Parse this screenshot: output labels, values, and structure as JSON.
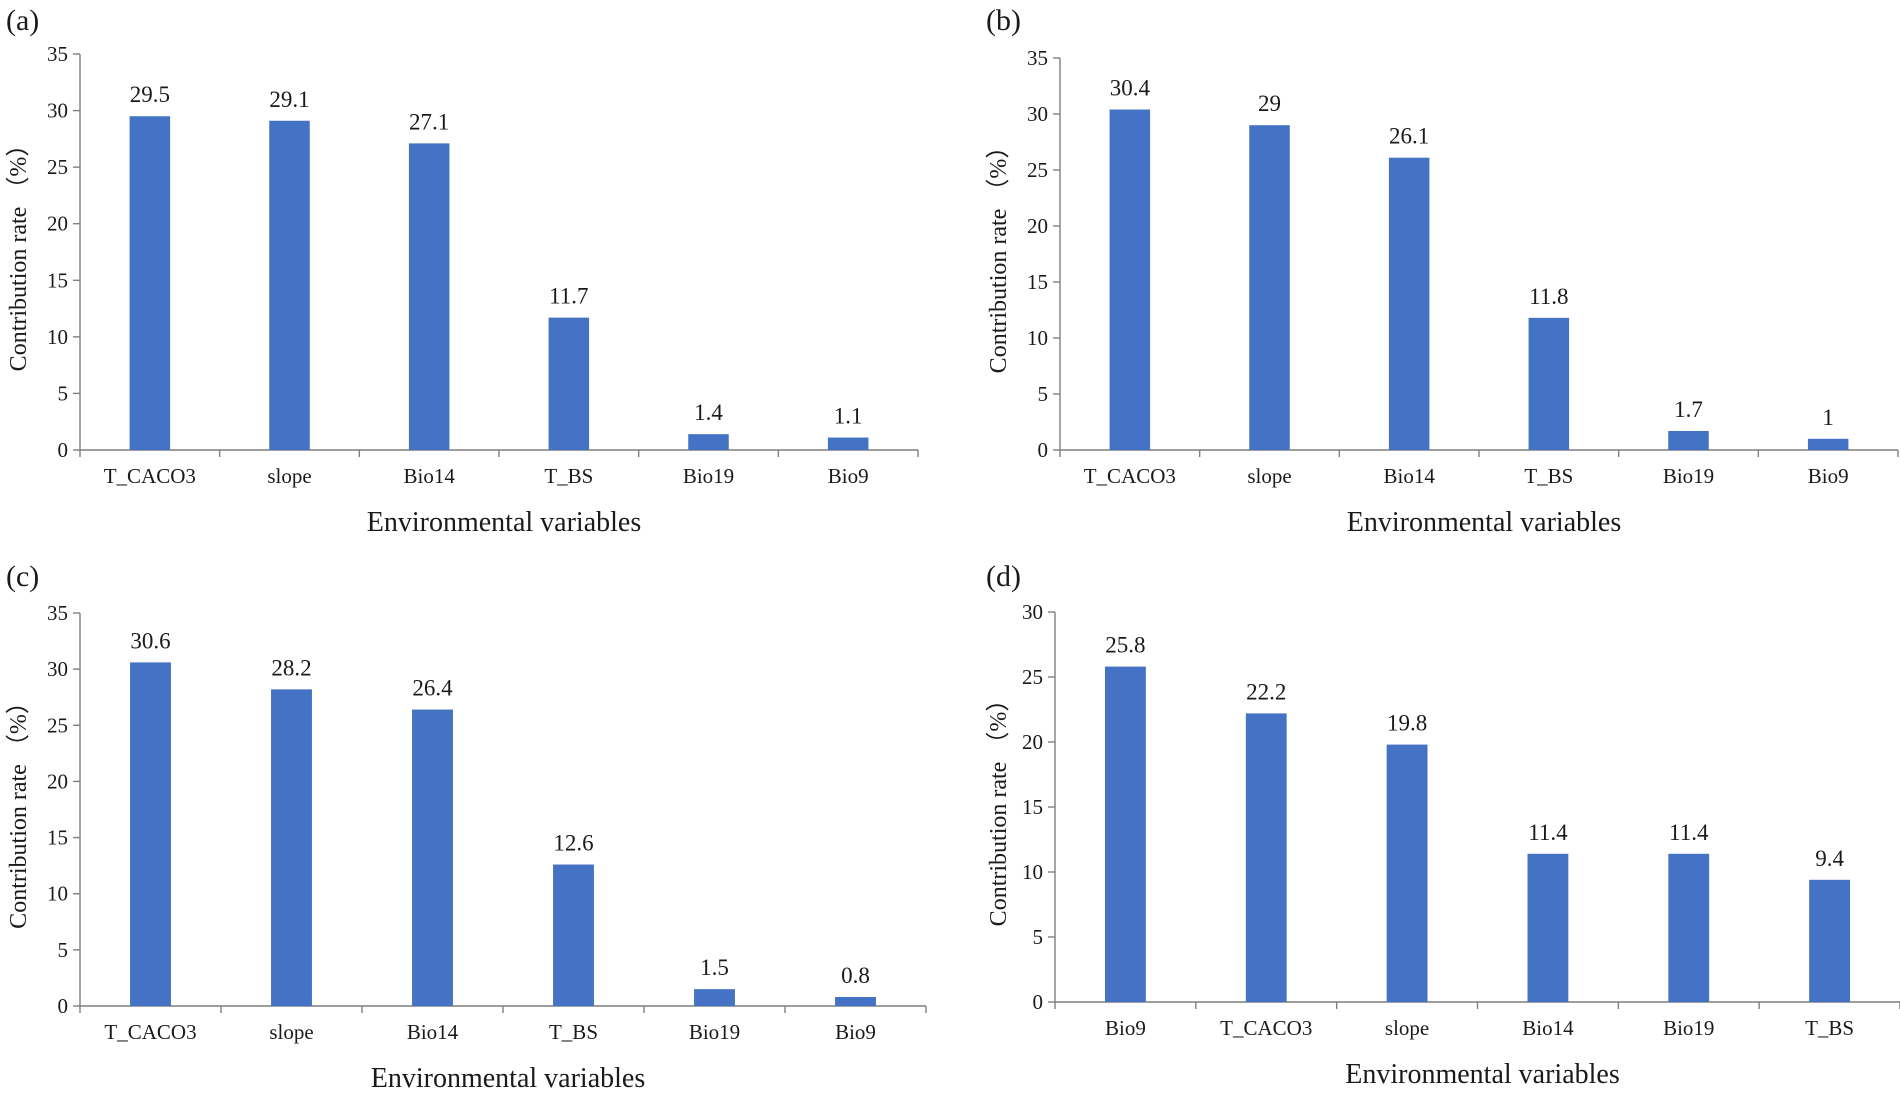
{
  "chart_data": [
    {
      "type": "bar",
      "panel_label": "(a)",
      "categories": [
        "T_CACO3",
        "slope",
        "Bio14",
        "T_BS",
        "Bio19",
        "Bio9"
      ],
      "values": [
        29.5,
        29.1,
        27.1,
        11.7,
        1.4,
        1.1
      ],
      "value_labels": [
        "29.5",
        "29.1",
        "27.1",
        "11.7",
        "1.4",
        "1.1"
      ],
      "xlabel": "Environmental variables",
      "ylabel": "Contribution rate （%）",
      "ylim": [
        0,
        35
      ],
      "yticks": [
        0,
        5,
        10,
        15,
        20,
        25,
        30,
        35
      ],
      "grid": false,
      "color": "#4472C4"
    },
    {
      "type": "bar",
      "panel_label": "(b)",
      "categories": [
        "T_CACO3",
        "slope",
        "Bio14",
        "T_BS",
        "Bio19",
        "Bio9"
      ],
      "values": [
        30.4,
        29,
        26.1,
        11.8,
        1.7,
        1
      ],
      "value_labels": [
        "30.4",
        "29",
        "26.1",
        "11.8",
        "1.7",
        "1"
      ],
      "xlabel": "Environmental variables",
      "ylabel": "Contribution rate （%）",
      "ylim": [
        0,
        35
      ],
      "yticks": [
        0,
        5,
        10,
        15,
        20,
        25,
        30,
        35
      ],
      "grid": false,
      "color": "#4472C4"
    },
    {
      "type": "bar",
      "panel_label": "(c)",
      "categories": [
        "T_CACO3",
        "slope",
        "Bio14",
        "T_BS",
        "Bio19",
        "Bio9"
      ],
      "values": [
        30.6,
        28.2,
        26.4,
        12.6,
        1.5,
        0.8
      ],
      "value_labels": [
        "30.6",
        "28.2",
        "26.4",
        "12.6",
        "1.5",
        "0.8"
      ],
      "xlabel": "Environmental variables",
      "ylabel": "Contribution rate （%）",
      "ylim": [
        0,
        35
      ],
      "yticks": [
        0,
        5,
        10,
        15,
        20,
        25,
        30,
        35
      ],
      "grid": false,
      "color": "#4472C4"
    },
    {
      "type": "bar",
      "panel_label": "(d)",
      "categories": [
        "Bio9",
        "T_CACO3",
        "slope",
        "Bio14",
        "Bio19",
        "T_BS"
      ],
      "values": [
        25.8,
        22.2,
        19.8,
        11.4,
        11.4,
        9.4
      ],
      "value_labels": [
        "25.8",
        "22.2",
        "19.8",
        "11.4",
        "11.4",
        "9.4"
      ],
      "xlabel": "Environmental variables",
      "ylabel": "Contribution rate （%）",
      "ylim": [
        0,
        30
      ],
      "yticks": [
        0,
        5,
        10,
        15,
        20,
        25,
        30
      ],
      "grid": false,
      "color": "#4472C4"
    }
  ]
}
